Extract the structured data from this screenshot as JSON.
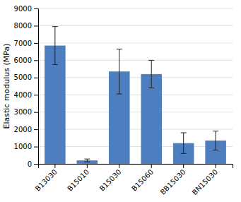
{
  "chart_data": {
    "type": "bar",
    "categories": [
      "B13030",
      "B15010",
      "B15030",
      "B15060",
      "BB15030",
      "BN15030"
    ],
    "values": [
      6850,
      200,
      5350,
      5200,
      1200,
      1350
    ],
    "errors": [
      1100,
      80,
      1300,
      800,
      600,
      550
    ],
    "color": "#4d7ebf",
    "ylabel": "Elastic modulus (MPa)",
    "ylim": [
      0,
      9000
    ],
    "yticks": [
      0,
      1000,
      2000,
      3000,
      4000,
      5000,
      6000,
      7000,
      8000,
      9000
    ],
    "grid": true
  }
}
